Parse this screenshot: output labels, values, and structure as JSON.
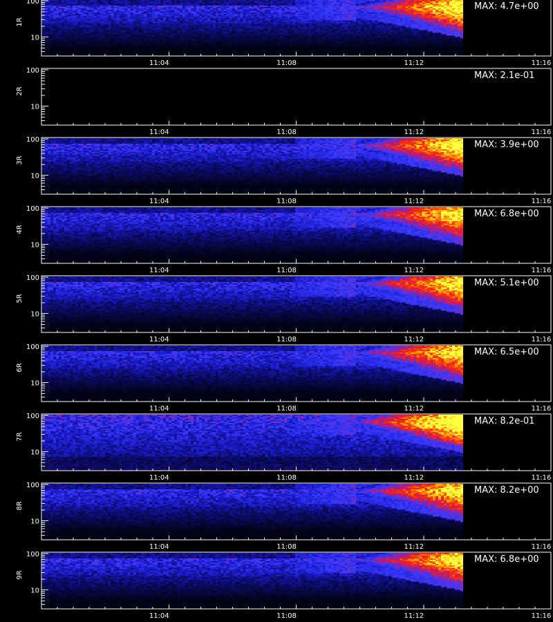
{
  "chart_data": {
    "type": "heatmap",
    "colors": {
      "background": "#000000",
      "axes": "#ffffff",
      "colormap": [
        "#000000",
        "#0a0a5a",
        "#1a1acc",
        "#3b3bff",
        "#c2186e",
        "#ff2a00",
        "#ff9a00",
        "#ffff40"
      ]
    },
    "x_ticks": [
      "11:04",
      "11:08",
      "11:12",
      "11:16"
    ],
    "x_tick_minutes": [
      4,
      8,
      12,
      16
    ],
    "x_range_minutes": [
      0,
      16
    ],
    "y_ticks": [
      "100",
      "10"
    ],
    "y_tick_values": [
      100,
      10
    ],
    "y_range": [
      3,
      110
    ],
    "y_scale": "log",
    "xlabel": "",
    "panels": [
      {
        "name": "1R",
        "max": "MAX: 4.7e+00",
        "intensity": 0.75
      },
      {
        "name": "2R",
        "max": "MAX: 2.1e-01",
        "intensity": 0.0
      },
      {
        "name": "3R",
        "max": "MAX: 3.9e+00",
        "intensity": 0.75
      },
      {
        "name": "4R",
        "max": "MAX: 6.8e+00",
        "intensity": 0.72
      },
      {
        "name": "5R",
        "max": "MAX: 5.1e+00",
        "intensity": 0.72
      },
      {
        "name": "6R",
        "max": "MAX: 6.5e+00",
        "intensity": 0.72
      },
      {
        "name": "7R",
        "max": "MAX: 8.2e-01",
        "intensity": 0.85
      },
      {
        "name": "8R",
        "max": "MAX: 8.2e+00",
        "intensity": 0.72
      },
      {
        "name": "9R",
        "max": "MAX: 6.8e+00",
        "intensity": 0.72
      }
    ]
  }
}
